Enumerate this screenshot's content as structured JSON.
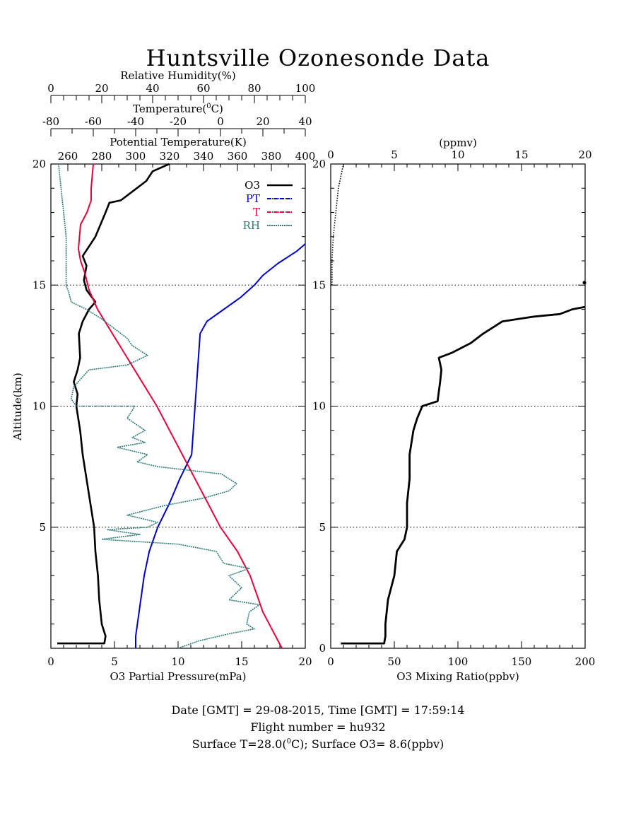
{
  "title": "Huntsville Ozonesonde Data",
  "left_panel": {
    "ylabel": "Altitude(km)",
    "xlabel": "O3 Partial Pressure(mPa)",
    "axes": {
      "o3": {
        "label": "O3 Partial Pressure(mPa)",
        "range": [
          0,
          20
        ],
        "ticks": [
          "0",
          "5",
          "10",
          "15",
          "20"
        ]
      },
      "pt": {
        "label": "Potential Temperature(K)",
        "range": [
          250,
          400
        ],
        "ticks": [
          "260",
          "280",
          "300",
          "320",
          "340",
          "360",
          "380",
          "400"
        ]
      },
      "t": {
        "label": "Temperature(°C)",
        "label_main": "Temperature(",
        "label_sup": "0",
        "label_tail": "C)",
        "range": [
          -80,
          40
        ],
        "ticks": [
          "-80",
          "-60",
          "-40",
          "-20",
          "0",
          "20",
          "40"
        ]
      },
      "rh": {
        "label": "Relative Humidity(%)",
        "range": [
          0,
          100
        ],
        "ticks": [
          "0",
          "20",
          "40",
          "60",
          "80",
          "100"
        ]
      }
    },
    "y": {
      "range": [
        0,
        20
      ],
      "ticks": [
        "5",
        "10",
        "15",
        "20"
      ]
    },
    "legend": {
      "placement": "top-right",
      "items": [
        "O3",
        "PT",
        "T",
        "RH"
      ]
    }
  },
  "right_panel": {
    "xlabel": "O3 Mixing Ratio(ppbv)",
    "top_label": "(ppmv)",
    "bottom_ticks": [
      "0",
      "50",
      "100",
      "150",
      "200"
    ],
    "top_ticks": [
      "0",
      "5",
      "10",
      "15",
      "20"
    ],
    "y": {
      "range": [
        0,
        20
      ],
      "ticks": [
        "0",
        "5",
        "10",
        "15",
        "20"
      ]
    }
  },
  "colors": {
    "o3": "#000000",
    "pt": "#0000cc",
    "t": "#e8003c",
    "rh": "#2e7b7b",
    "grid": "#000000"
  },
  "footer": {
    "line1": "Date [GMT] = 29-08-2015,  Time [GMT] = 17:59:14",
    "line2": "Flight number = hu932",
    "line3": "Surface T=28.0(0C); Surface O3= 8.6(ppbv)",
    "line3_a": "Surface T=28.0(",
    "line3_sup": "0",
    "line3_b": "C); Surface O3= 8.6(ppbv)"
  },
  "chart_data": [
    {
      "type": "line",
      "title": "",
      "ylabel": "Altitude(km)",
      "ylim": [
        0,
        20
      ],
      "grid": "dotted horizontal at 5, 10, 15 km",
      "series": [
        {
          "name": "O3",
          "units": "mPa",
          "xlim": [
            0,
            20
          ],
          "points": [
            [
              0.5,
              0.2
            ],
            [
              4.2,
              0.2
            ],
            [
              4.3,
              0.5
            ],
            [
              4.0,
              1.0
            ],
            [
              3.8,
              2.0
            ],
            [
              3.7,
              3.0
            ],
            [
              3.5,
              4.0
            ],
            [
              3.4,
              5.0
            ],
            [
              3.1,
              6.0
            ],
            [
              2.8,
              7.0
            ],
            [
              2.5,
              8.0
            ],
            [
              2.3,
              9.0
            ],
            [
              2.0,
              10.0
            ],
            [
              2.1,
              10.5
            ],
            [
              1.8,
              11.0
            ],
            [
              2.1,
              11.5
            ],
            [
              2.3,
              12.0
            ],
            [
              2.2,
              13.0
            ],
            [
              2.5,
              13.5
            ],
            [
              3.0,
              14.0
            ],
            [
              3.5,
              14.3
            ],
            [
              2.8,
              14.8
            ],
            [
              2.6,
              15.2
            ],
            [
              2.8,
              15.8
            ],
            [
              2.5,
              16.2
            ],
            [
              3.5,
              17.0
            ],
            [
              3.9,
              17.5
            ],
            [
              4.3,
              18.0
            ],
            [
              4.6,
              18.4
            ],
            [
              5.5,
              18.5
            ],
            [
              6.5,
              18.9
            ],
            [
              7.5,
              19.3
            ],
            [
              8.0,
              19.7
            ],
            [
              9.3,
              20.0
            ]
          ]
        },
        {
          "name": "PT",
          "units": "K",
          "xlim": [
            250,
            400
          ],
          "points": [
            [
              300,
              0.0
            ],
            [
              300,
              0.5
            ],
            [
              301,
              1.0
            ],
            [
              303,
              2.0
            ],
            [
              305,
              3.0
            ],
            [
              308,
              4.0
            ],
            [
              313,
              5.0
            ],
            [
              320,
              6.0
            ],
            [
              326,
              7.0
            ],
            [
              333,
              8.0
            ],
            [
              334,
              9.0
            ],
            [
              335,
              10.0
            ],
            [
              336,
              11.0
            ],
            [
              337,
              12.0
            ],
            [
              338,
              13.0
            ],
            [
              342,
              13.5
            ],
            [
              352,
              14.0
            ],
            [
              362,
              14.5
            ],
            [
              370,
              15.0
            ],
            [
              375,
              15.4
            ],
            [
              384,
              15.9
            ],
            [
              395,
              16.4
            ],
            [
              400,
              16.7
            ]
          ]
        },
        {
          "name": "T",
          "units": "°C",
          "xlim": [
            -80,
            40
          ],
          "points": [
            [
              29.0,
              0.0
            ],
            [
              26.0,
              0.5
            ],
            [
              20.0,
              1.5
            ],
            [
              14.0,
              3.0
            ],
            [
              8.0,
              4.0
            ],
            [
              0.0,
              5.0
            ],
            [
              -6.0,
              6.0
            ],
            [
              -12.0,
              7.0
            ],
            [
              -18.0,
              8.0
            ],
            [
              -24.0,
              9.0
            ],
            [
              -30.0,
              10.0
            ],
            [
              -37.0,
              11.0
            ],
            [
              -44.0,
              12.0
            ],
            [
              -51.0,
              13.0
            ],
            [
              -58.0,
              14.0
            ],
            [
              -62.0,
              14.8
            ],
            [
              -64.0,
              15.5
            ],
            [
              -66.0,
              16.0
            ],
            [
              -67.0,
              16.5
            ],
            [
              -66.0,
              17.5
            ],
            [
              -63.0,
              18.0
            ],
            [
              -61.0,
              18.5
            ],
            [
              -61.0,
              19.0
            ],
            [
              -60.0,
              20.0
            ]
          ]
        },
        {
          "name": "RH",
          "units": "%",
          "xlim": [
            0,
            100
          ],
          "points": [
            [
              50,
              0.0
            ],
            [
              58,
              0.3
            ],
            [
              70,
              0.6
            ],
            [
              80,
              0.8
            ],
            [
              77,
              1.0
            ],
            [
              78,
              1.5
            ],
            [
              82,
              1.8
            ],
            [
              70,
              2.0
            ],
            [
              75,
              2.5
            ],
            [
              70,
              3.0
            ],
            [
              78,
              3.3
            ],
            [
              68,
              3.5
            ],
            [
              65,
              4.0
            ],
            [
              50,
              4.3
            ],
            [
              20,
              4.5
            ],
            [
              35,
              4.7
            ],
            [
              22,
              4.9
            ],
            [
              38,
              5.0
            ],
            [
              42,
              5.2
            ],
            [
              30,
              5.5
            ],
            [
              45,
              5.9
            ],
            [
              60,
              6.2
            ],
            [
              70,
              6.5
            ],
            [
              73,
              6.8
            ],
            [
              67,
              7.2
            ],
            [
              42,
              7.5
            ],
            [
              34,
              7.7
            ],
            [
              38,
              8.0
            ],
            [
              26,
              8.3
            ],
            [
              37,
              8.5
            ],
            [
              32,
              8.7
            ],
            [
              37,
              9.0
            ],
            [
              30,
              9.5
            ],
            [
              33,
              10.0
            ],
            [
              10,
              10.0
            ],
            [
              8,
              10.3
            ],
            [
              9,
              10.8
            ],
            [
              15,
              11.5
            ],
            [
              30,
              11.7
            ],
            [
              38,
              12.1
            ],
            [
              32,
              12.5
            ],
            [
              30,
              12.8
            ],
            [
              25,
              13.2
            ],
            [
              20,
              13.6
            ],
            [
              14,
              14.0
            ],
            [
              8,
              14.3
            ],
            [
              7,
              14.7
            ],
            [
              6,
              15.0
            ],
            [
              6,
              15.5
            ],
            [
              6,
              16.0
            ],
            [
              6,
              17.0
            ],
            [
              5,
              18.0
            ],
            [
              4,
              19.0
            ],
            [
              3,
              20.0
            ]
          ]
        }
      ]
    },
    {
      "type": "line",
      "title": "",
      "xlabel": "O3 Mixing Ratio(ppbv)",
      "x2label": "(ppmv)",
      "xlim": [
        0,
        200
      ],
      "ylim": [
        0,
        20
      ],
      "grid": "dotted horizontal at 5, 10, 15 km",
      "series": [
        {
          "name": "",
          "units": "ppbv",
          "points": [
            [
              8,
              0.2
            ],
            [
              42,
              0.2
            ],
            [
              43,
              0.5
            ],
            [
              43,
              1.0
            ],
            [
              45,
              2.0
            ],
            [
              50,
              3.0
            ],
            [
              52,
              4.0
            ],
            [
              58,
              4.5
            ],
            [
              60,
              5.0
            ],
            [
              60,
              6.0
            ],
            [
              62,
              7.0
            ],
            [
              62,
              8.0
            ],
            [
              65,
              9.0
            ],
            [
              68,
              9.5
            ],
            [
              72,
              10.0
            ],
            [
              84,
              10.2
            ],
            [
              86,
              11.0
            ],
            [
              87,
              11.5
            ],
            [
              85,
              12.0
            ],
            [
              95,
              12.2
            ],
            [
              110,
              12.6
            ],
            [
              120,
              13.0
            ],
            [
              135,
              13.5
            ],
            [
              160,
              13.7
            ],
            [
              180,
              13.8
            ],
            [
              190,
              14.0
            ],
            [
              200,
              14.1
            ]
          ]
        },
        {
          "name": "",
          "units": "ppmv",
          "xlim": [
            0,
            20
          ],
          "points": [
            [
              0.1,
              15.0
            ],
            [
              0.1,
              16.0
            ],
            [
              0.2,
              17.0
            ],
            [
              0.4,
              18.0
            ],
            [
              0.6,
              19.0
            ],
            [
              1.0,
              20.0
            ]
          ]
        }
      ]
    }
  ]
}
